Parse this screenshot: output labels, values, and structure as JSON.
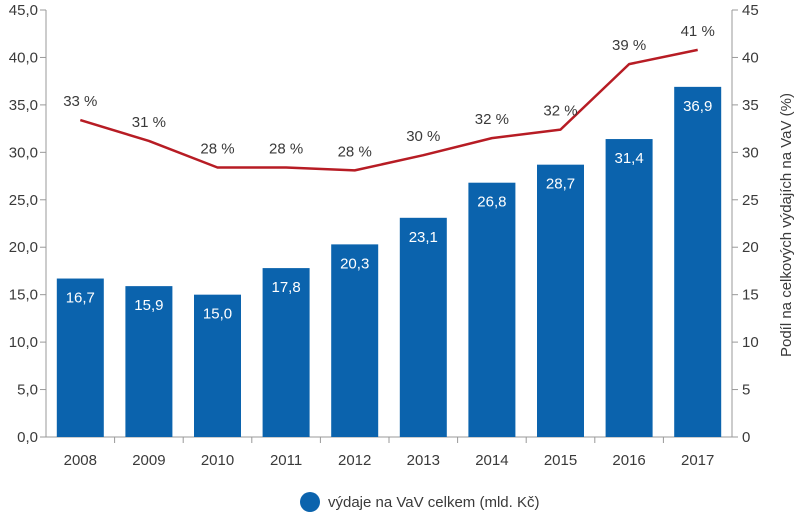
{
  "chart_data": {
    "type": "bar",
    "categories": [
      "2008",
      "2009",
      "2010",
      "2011",
      "2012",
      "2013",
      "2014",
      "2015",
      "2016",
      "2017"
    ],
    "series": [
      {
        "name": "výdaje na VaV celkem (mld. Kč)",
        "type": "bar",
        "axis": "left",
        "values": [
          16.7,
          15.9,
          15.0,
          17.8,
          20.3,
          23.1,
          26.8,
          28.7,
          31.4,
          36.9
        ],
        "labels": [
          "16,7",
          "15,9",
          "15,0",
          "17,8",
          "20,3",
          "23,1",
          "26,8",
          "28,7",
          "31,4",
          "36,9"
        ]
      },
      {
        "name": "Podíl na celkových výdajích na VaV (%)",
        "type": "line",
        "axis": "right",
        "values": [
          33.4,
          31.2,
          28.4,
          28.4,
          28.1,
          29.7,
          31.5,
          32.4,
          39.3,
          40.8
        ],
        "labels": [
          "33 %",
          "31 %",
          "28 %",
          "28 %",
          "28 %",
          "30 %",
          "32 %",
          "32 %",
          "39 %",
          "41 %"
        ]
      }
    ],
    "ylim_left": [
      0,
      45
    ],
    "ylim_right": [
      0,
      45
    ],
    "yticks_left": [
      "0,0",
      "5,0",
      "10,0",
      "15,0",
      "20,0",
      "25,0",
      "30,0",
      "35,0",
      "40,0",
      "45,0"
    ],
    "yticks_right": [
      "0",
      "5",
      "10",
      "15",
      "20",
      "25",
      "30",
      "35",
      "40",
      "45"
    ],
    "ylabel_right": "Podíl na celkových výdajích na VaV (%)",
    "legend": "výdaje na VaV celkem (mld. Kč)",
    "colors": {
      "bar": "#0b63ad",
      "line": "#b71c24",
      "axis": "#999999"
    }
  }
}
